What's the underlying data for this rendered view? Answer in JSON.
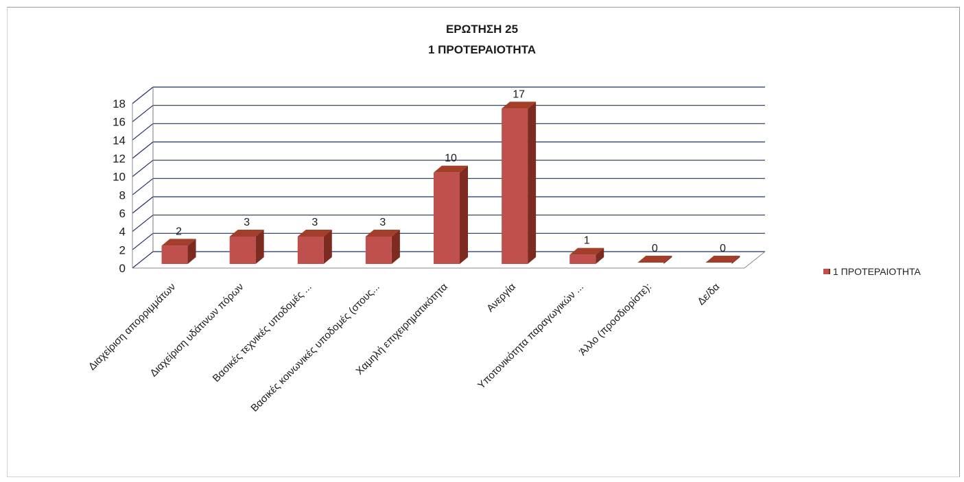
{
  "chart_data": {
    "type": "bar",
    "title": "ΕΡΩΤΗΣΗ 25",
    "subtitle": "1 ΠΡΟΤΕΡΑΙΟΤΗΤΑ",
    "categories": [
      "Διαχείριση απορριμμάτων",
      "Διαχείριση υδάτινων πόρων",
      "Βασικές τεχνικές υποδομές ...",
      "Βασικές κοινωνικές υποδομές (στους...",
      "Χαμηλή επιχειρηματικότητα",
      "Ανεργία",
      "Υποτονικότητα παραγωγικών ...",
      "Άλλο (προσδιορίστε):",
      "Δε/δα"
    ],
    "series": [
      {
        "name": "1 ΠΡΟΤΕΡΑΙΟΤΗΤΑ",
        "values": [
          2,
          3,
          3,
          3,
          10,
          17,
          1,
          0,
          0
        ]
      }
    ],
    "ylim": [
      0,
      18
    ],
    "yticks": [
      "0",
      "2",
      "4",
      "6",
      "8",
      "10",
      "12",
      "14",
      "16",
      "18"
    ],
    "grid": true,
    "three_d": true,
    "legend_position": "right",
    "colors": {
      "bar_front": "#c0504d",
      "bar_side": "#7d2a20",
      "bar_top": "#a33e2a",
      "grid": "#1f2f5f"
    }
  }
}
